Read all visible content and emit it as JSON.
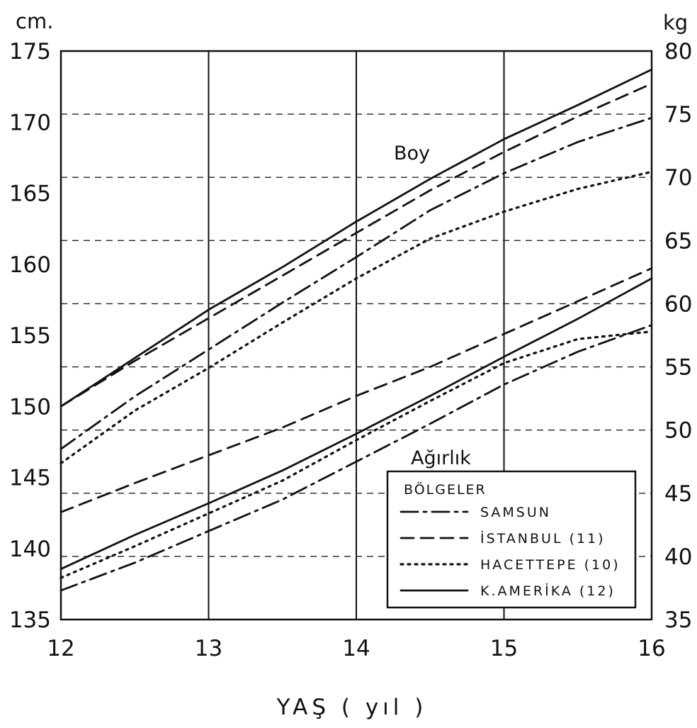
{
  "chart_data": {
    "type": "line",
    "title": "",
    "xlabel": "YAŞ ( yıl )",
    "x_ticks": [
      "12",
      "13",
      "14",
      "15",
      "16"
    ],
    "xlim": [
      12,
      16
    ],
    "left_axis": {
      "unit": "cm.",
      "ylim": [
        135,
        175
      ],
      "ticks": [
        "135",
        "140",
        "145",
        "150",
        "155",
        "160",
        "165",
        "170",
        "175"
      ]
    },
    "right_axis": {
      "unit": "kg",
      "ylim": [
        35,
        80
      ],
      "ticks": [
        "35",
        "40",
        "45",
        "50",
        "55",
        "60",
        "65",
        "70",
        "75",
        "80"
      ]
    },
    "grid": "solid vertical at each age; horizontal dashed at right-axis kg ticks",
    "annotations": {
      "height_group": "Boy",
      "weight_group": "Ağırlık"
    },
    "legend": {
      "title": "BÖLGELER",
      "placement": "bottom-right",
      "items": [
        {
          "label": "SAMSUN",
          "style": "dash-dot"
        },
        {
          "label": "İSTANBUL (11)",
          "style": "dashed"
        },
        {
          "label": "HACETTEPE (10)",
          "style": "dotted"
        },
        {
          "label": "K.AMERİKA (12)",
          "style": "solid"
        }
      ]
    },
    "x": [
      12,
      12.5,
      13,
      13.5,
      14,
      14.5,
      15,
      15.5,
      16
    ],
    "series": [
      {
        "name": "SAMSUN",
        "group": "Boy",
        "axis": "left",
        "unit": "cm",
        "style": "dash-dot",
        "values": [
          147.0,
          150.7,
          154.0,
          157.3,
          160.5,
          163.8,
          166.4,
          168.6,
          170.3
        ]
      },
      {
        "name": "İSTANBUL (11)",
        "group": "Boy",
        "axis": "left",
        "unit": "cm",
        "style": "dashed",
        "values": [
          150.0,
          153.2,
          156.2,
          159.2,
          162.2,
          165.2,
          167.9,
          170.4,
          172.7
        ]
      },
      {
        "name": "HACETTEPE (10)",
        "group": "Boy",
        "axis": "left",
        "unit": "cm",
        "style": "dotted",
        "values": [
          146.0,
          149.7,
          152.7,
          155.9,
          159.0,
          161.8,
          163.7,
          165.3,
          166.5
        ]
      },
      {
        "name": "K.AMERİKA (12)",
        "group": "Boy",
        "axis": "left",
        "unit": "cm",
        "style": "solid",
        "values": [
          150.0,
          153.4,
          156.8,
          159.8,
          163.0,
          166.0,
          168.8,
          171.2,
          173.7
        ]
      },
      {
        "name": "SAMSUN",
        "group": "Ağırlık",
        "axis": "right",
        "unit": "kg",
        "style": "dash-dot",
        "values": [
          37.3,
          39.5,
          42.0,
          44.5,
          47.5,
          50.5,
          53.6,
          56.2,
          58.3
        ]
      },
      {
        "name": "İSTANBUL (11)",
        "group": "Ağırlık",
        "axis": "right",
        "unit": "kg",
        "style": "dashed",
        "values": [
          43.5,
          45.8,
          48.0,
          50.2,
          52.7,
          55.0,
          57.6,
          60.2,
          62.8
        ]
      },
      {
        "name": "HACETTEPE (10)",
        "group": "Ağırlık",
        "axis": "right",
        "unit": "kg",
        "style": "dotted",
        "values": [
          38.3,
          40.8,
          43.4,
          46.0,
          49.2,
          52.3,
          55.3,
          57.2,
          57.8
        ]
      },
      {
        "name": "K.AMERİKA (12)",
        "group": "Ağırlık",
        "axis": "right",
        "unit": "kg",
        "style": "solid",
        "values": [
          39.0,
          41.7,
          44.2,
          46.8,
          49.7,
          52.7,
          55.8,
          58.8,
          62.0
        ]
      }
    ]
  }
}
